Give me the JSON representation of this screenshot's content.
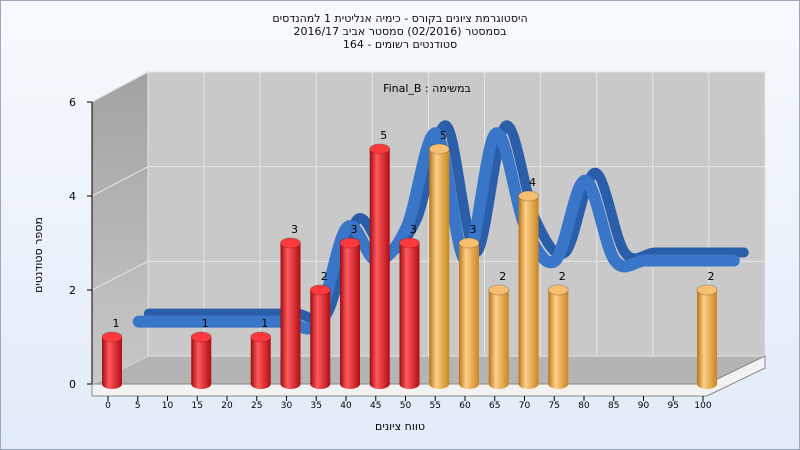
{
  "chart_data": {
    "type": "bar",
    "title_lines": [
      "היסטוגרמת ציונים בקורס - כימיה אנליטית 1 למהנדסים",
      "בסמסטר  (02/2016)  סמסטר אביב 2016/17",
      "סטודנטים רשומים - 164"
    ],
    "task_label": "במשימה : Final_B",
    "xlabel": "טווח ציונים",
    "ylabel": "מספר סטודנטים",
    "x_ticks": [
      "0",
      "5",
      "10",
      "15",
      "20",
      "25",
      "30",
      "35",
      "40",
      "45",
      "50",
      "55",
      "60",
      "65",
      "70",
      "75",
      "80",
      "85",
      "90",
      "95",
      "100"
    ],
    "y_ticks": [
      "0",
      "2",
      "4",
      "6"
    ],
    "ylim": [
      0,
      6
    ],
    "bars": [
      {
        "x": 0,
        "value": 1,
        "group": "fail"
      },
      {
        "x": 15,
        "value": 1,
        "group": "fail"
      },
      {
        "x": 25,
        "value": 1,
        "group": "fail"
      },
      {
        "x": 30,
        "value": 3,
        "group": "fail"
      },
      {
        "x": 35,
        "value": 2,
        "group": "fail"
      },
      {
        "x": 40,
        "value": 3,
        "group": "fail"
      },
      {
        "x": 45,
        "value": 5,
        "group": "fail"
      },
      {
        "x": 50,
        "value": 3,
        "group": "fail"
      },
      {
        "x": 55,
        "value": 5,
        "group": "pass"
      },
      {
        "x": 60,
        "value": 3,
        "group": "pass"
      },
      {
        "x": 65,
        "value": 2,
        "group": "pass"
      },
      {
        "x": 70,
        "value": 4,
        "group": "pass"
      },
      {
        "x": 75,
        "value": 2,
        "group": "pass"
      },
      {
        "x": 100,
        "value": 2,
        "group": "pass"
      }
    ],
    "curve_x": [
      0,
      5,
      10,
      15,
      20,
      25,
      30,
      35,
      40,
      45,
      50,
      55,
      60,
      65,
      70,
      75,
      80,
      85,
      90,
      95,
      100
    ],
    "curve_y": [
      1,
      1,
      1,
      1,
      1,
      1,
      1,
      3,
      2.3,
      3,
      5,
      2.3,
      5,
      3,
      2.3,
      4,
      2.3,
      2.3,
      2.3,
      2.3,
      2.3
    ],
    "colors": {
      "fail": "#e8151b",
      "pass": "#f0a83c",
      "curve": "#3a76c8",
      "ribbon": "#6a6a6a"
    }
  }
}
